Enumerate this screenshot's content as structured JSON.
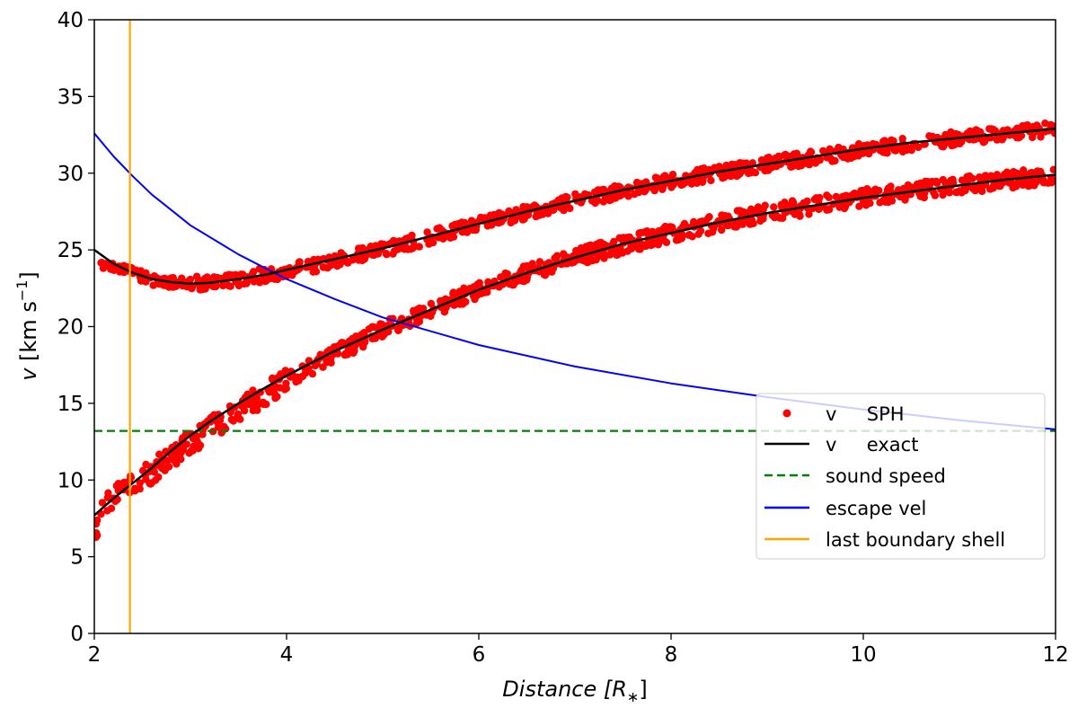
{
  "chart_data": {
    "type": "scatter",
    "title": "",
    "xlabel": {
      "main": "Distance [",
      "sym": "R",
      "sub": "∗",
      "close": "]"
    },
    "ylabel": {
      "sym": "v",
      "main": " [km s",
      "sup": "−1",
      "close": "]"
    },
    "xlim": [
      2,
      12
    ],
    "ylim": [
      0,
      40
    ],
    "xticks": [
      2,
      4,
      6,
      8,
      10,
      12
    ],
    "yticks": [
      0,
      5,
      10,
      15,
      20,
      25,
      30,
      35,
      40
    ],
    "grid": false,
    "legend_position": "lower-right",
    "series": [
      {
        "name": "v     SPH",
        "kind": "scatter",
        "color": "#ff0000",
        "description": "SPH particles tracing two velocity branches with scatter",
        "branches": [
          {
            "x": [
              2.05,
              2.2,
              2.4,
              2.6,
              2.8,
              3.0,
              3.2,
              3.5,
              3.8,
              4.0,
              4.5,
              5,
              6,
              7,
              8,
              9,
              10,
              11,
              12
            ],
            "y": [
              24.2,
              24.0,
              23.5,
              23.0,
              22.9,
              22.8,
              22.9,
              23.1,
              23.4,
              23.6,
              24.3,
              25.0,
              26.7,
              28.2,
              29.5,
              30.6,
              31.5,
              32.3,
              32.9
            ]
          },
          {
            "x": [
              2.0,
              2.1,
              2.2,
              2.4,
              2.6,
              2.8,
              3.0,
              3.2,
              3.5,
              4.0,
              4.5,
              5,
              6,
              7,
              8,
              9,
              10,
              11,
              12
            ],
            "y": [
              6.5,
              8.5,
              8.9,
              9.7,
              10.6,
              11.5,
              12.4,
              13.3,
              14.5,
              16.4,
              18.2,
              19.8,
              22.4,
              24.5,
              26.1,
              27.4,
              28.4,
              29.2,
              29.9
            ]
          }
        ]
      },
      {
        "name": "v     exact",
        "kind": "line",
        "color": "#000000",
        "branches": [
          {
            "x": [
              2.0,
              2.2,
              2.4,
              2.6,
              2.8,
              3.0,
              3.2,
              3.5,
              3.8,
              4.0,
              4.5,
              5,
              5.5,
              6,
              6.5,
              7,
              7.5,
              8,
              8.5,
              9,
              9.5,
              10,
              10.5,
              11,
              11.5,
              12
            ],
            "y": [
              25.0,
              24.1,
              23.5,
              23.1,
              22.9,
              22.8,
              22.85,
              23.1,
              23.4,
              23.7,
              24.4,
              25.1,
              25.9,
              26.7,
              27.5,
              28.2,
              28.9,
              29.5,
              30.1,
              30.6,
              31.1,
              31.6,
              32.0,
              32.3,
              32.6,
              32.9
            ]
          },
          {
            "x": [
              2.0,
              2.2,
              2.4,
              2.6,
              2.8,
              3.0,
              3.2,
              3.5,
              3.8,
              4.0,
              4.5,
              5,
              5.5,
              6,
              6.5,
              7,
              7.5,
              8,
              8.5,
              9,
              9.5,
              10,
              10.5,
              11,
              11.5,
              12
            ],
            "y": [
              7.7,
              8.8,
              9.8,
              10.8,
              11.9,
              12.9,
              13.8,
              15.0,
              16.1,
              16.8,
              18.4,
              19.8,
              21.1,
              22.4,
              23.5,
              24.5,
              25.4,
              26.1,
              26.8,
              27.4,
              27.9,
              28.4,
              28.8,
              29.2,
              29.6,
              29.9
            ]
          }
        ]
      },
      {
        "name": "sound speed",
        "kind": "hline",
        "color": "#008000",
        "dash": true,
        "y": 13.2
      },
      {
        "name": "escape vel",
        "kind": "line",
        "color": "#0000ff",
        "branches": [
          {
            "x": [
              2.0,
              2.2,
              2.4,
              2.6,
              2.8,
              3.0,
              3.5,
              4.0,
              4.5,
              5,
              6,
              7,
              8,
              9,
              10,
              11,
              12
            ],
            "y": [
              32.6,
              31.1,
              29.8,
              28.6,
              27.6,
              26.6,
              24.7,
              23.1,
              21.8,
              20.6,
              18.8,
              17.4,
              16.3,
              15.4,
              14.6,
              13.9,
              13.3
            ]
          }
        ]
      },
      {
        "name": "last boundary shell",
        "kind": "vline",
        "color": "#ffa500",
        "x": 2.37
      }
    ]
  }
}
